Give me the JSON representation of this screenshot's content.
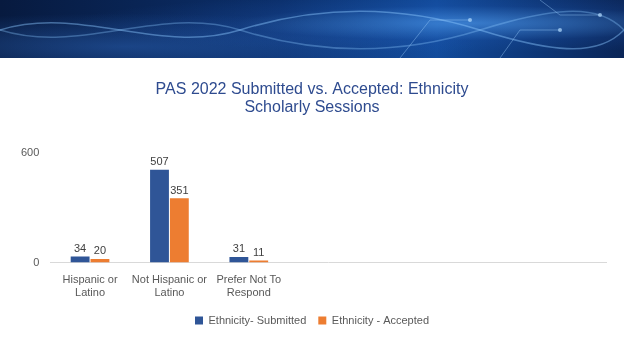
{
  "chart_data": {
    "type": "bar",
    "title": "PAS 2022 Submitted vs. Accepted: Ethnicity\nScholarly Sessions",
    "categories": [
      "Hispanic or Latino",
      "Not Hispanic or Latino",
      "Prefer Not To Respond",
      null,
      null,
      null,
      null
    ],
    "series": [
      {
        "name": "Ethnicity- Submitted",
        "color": "#2f5597",
        "values": [
          34,
          507,
          31,
          null,
          null,
          null,
          null
        ]
      },
      {
        "name": "Ethnicity - Accepted",
        "color": "#ed7d31",
        "values": [
          20,
          351,
          11,
          null,
          null,
          null,
          null
        ]
      }
    ],
    "ylim": [
      0,
      600
    ],
    "yticks": [
      0,
      600
    ],
    "grid": false,
    "legend": "bottom",
    "data_labels": true
  }
}
